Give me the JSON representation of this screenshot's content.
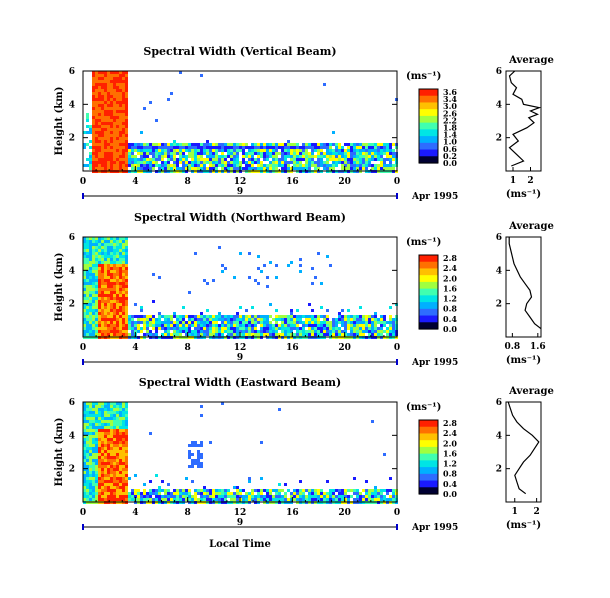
{
  "chart_data": {
    "type": "heatmap",
    "colormap": [
      "#000033",
      "#1a1aff",
      "#2e6cff",
      "#00b0ff",
      "#00e5e5",
      "#40ffb0",
      "#a0ff40",
      "#ffff00",
      "#ffc000",
      "#ff7000",
      "#ff2000"
    ],
    "xlabel": "Local Time",
    "date_label": "Apr 1995",
    "day_marker": "9",
    "colorbar_unit": "(ms⁻¹)",
    "avg_unit": "(ms⁻¹)",
    "avg_title": "Average",
    "panels": [
      {
        "title": "Spectral Width (Vertical Beam)",
        "ylabel": "Height (km)",
        "xlim": [
          0,
          24
        ],
        "ylim": [
          0,
          6
        ],
        "x_ticks": [
          "0",
          "4",
          "8",
          "12",
          "16",
          "20",
          "0"
        ],
        "y_ticks": [
          "2",
          "4",
          "6"
        ],
        "colorbar_ticks": [
          "3.6",
          "3.4",
          "3.0",
          "2.6",
          "2.2",
          "1.8",
          "1.4",
          "1.0",
          "0.6",
          "0.2",
          "0.0"
        ],
        "colorbar_range": [
          0,
          3.6
        ],
        "clutter_top_km": 1.7,
        "avg_xticks": [
          "1",
          "2"
        ],
        "avg_xlim": [
          0.6,
          2.6
        ],
        "avg_profile": [
          [
            0.9,
            0.3
          ],
          [
            1.6,
            0.6
          ],
          [
            1.2,
            1.0
          ],
          [
            0.8,
            1.4
          ],
          [
            1.3,
            1.8
          ],
          [
            1.0,
            2.2
          ],
          [
            1.8,
            2.6
          ],
          [
            2.2,
            2.9
          ],
          [
            1.9,
            3.2
          ],
          [
            2.4,
            3.4
          ],
          [
            2.0,
            3.6
          ],
          [
            2.5,
            3.8
          ],
          [
            1.6,
            4.0
          ],
          [
            1.5,
            4.3
          ],
          [
            1.0,
            4.6
          ],
          [
            1.2,
            5.0
          ],
          [
            0.9,
            5.3
          ],
          [
            0.8,
            5.7
          ],
          [
            1.1,
            6.0
          ]
        ]
      },
      {
        "title": "Spectral Width (Northward Beam)",
        "ylabel": "Height (km)",
        "xlim": [
          0,
          24
        ],
        "ylim": [
          0,
          6
        ],
        "x_ticks": [
          "0",
          "4",
          "8",
          "12",
          "16",
          "20",
          "0"
        ],
        "y_ticks": [
          "2",
          "4",
          "6"
        ],
        "colorbar_ticks": [
          "2.8",
          "2.4",
          "2.0",
          "1.6",
          "1.2",
          "0.8",
          "0.4",
          "0.0"
        ],
        "colorbar_range": [
          0,
          2.8
        ],
        "clutter_top_km": 1.4,
        "avg_xticks": [
          "0.8",
          "1.6"
        ],
        "avg_xlim": [
          0.6,
          1.7
        ],
        "avg_profile": [
          [
            1.7,
            0.5
          ],
          [
            1.5,
            0.8
          ],
          [
            1.35,
            1.2
          ],
          [
            1.2,
            1.6
          ],
          [
            1.25,
            2.0
          ],
          [
            1.4,
            2.4
          ],
          [
            1.35,
            2.8
          ],
          [
            1.2,
            3.2
          ],
          [
            1.05,
            3.6
          ],
          [
            0.95,
            4.0
          ],
          [
            0.85,
            4.4
          ],
          [
            0.8,
            4.8
          ],
          [
            0.75,
            5.2
          ],
          [
            0.7,
            5.6
          ],
          [
            0.7,
            6.0
          ]
        ]
      },
      {
        "title": "Spectral Width (Eastward Beam)",
        "ylabel": "Height (km)",
        "xlim": [
          0,
          24
        ],
        "ylim": [
          0,
          6
        ],
        "x_ticks": [
          "0",
          "4",
          "8",
          "12",
          "16",
          "20",
          "0"
        ],
        "y_ticks": [
          "2",
          "4",
          "6"
        ],
        "colorbar_ticks": [
          "2.8",
          "2.4",
          "2.0",
          "1.6",
          "1.2",
          "0.8",
          "0.4",
          "0.0"
        ],
        "colorbar_range": [
          0,
          2.8
        ],
        "clutter_top_km": 0.8,
        "avg_xticks": [
          "1",
          "2"
        ],
        "avg_xlim": [
          0.6,
          2.2
        ],
        "avg_profile": [
          [
            1.5,
            0.5
          ],
          [
            1.2,
            0.8
          ],
          [
            1.1,
            1.2
          ],
          [
            1.0,
            1.6
          ],
          [
            1.2,
            2.0
          ],
          [
            1.4,
            2.4
          ],
          [
            1.7,
            2.8
          ],
          [
            1.9,
            3.2
          ],
          [
            2.1,
            3.6
          ],
          [
            1.8,
            4.0
          ],
          [
            1.4,
            4.4
          ],
          [
            1.1,
            4.8
          ],
          [
            0.9,
            5.2
          ],
          [
            0.8,
            5.6
          ],
          [
            0.7,
            6.0
          ]
        ]
      }
    ]
  }
}
